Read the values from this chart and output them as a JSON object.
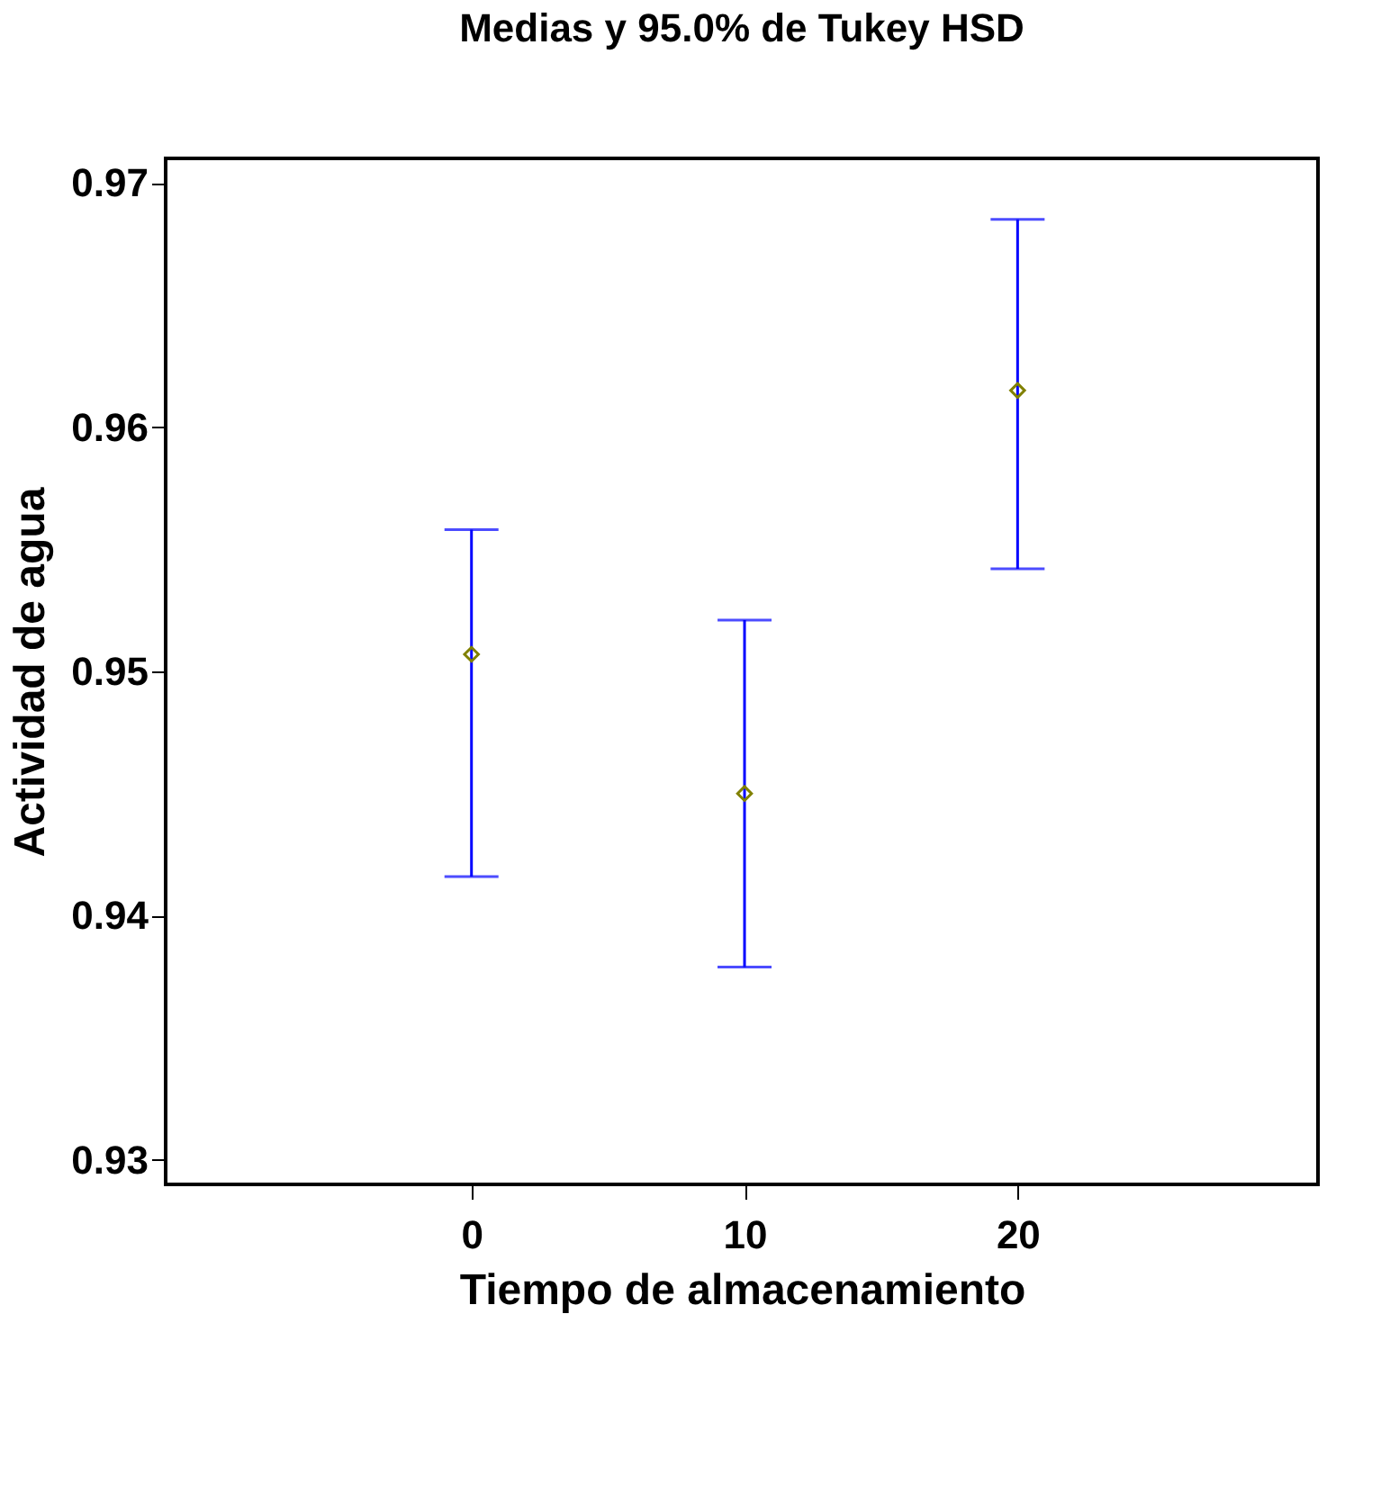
{
  "chart_data": {
    "type": "scatter",
    "title": "Medias y 95.0% de Tukey HSD",
    "xlabel": "Tiempo de almacenamiento",
    "ylabel": "Actividad de agua",
    "x": [
      0,
      10,
      20
    ],
    "series": [
      {
        "color": "#808000",
        "values": [
          0.9507,
          0.945,
          0.9615
        ],
        "errors": [
          [
            0.9416,
            0.9558
          ],
          [
            0.9379,
            0.9521
          ],
          [
            0.9542,
            0.9685
          ]
        ]
      }
    ],
    "xlim": [
      -11.2,
      31
    ],
    "xticks": [
      0,
      10,
      20
    ],
    "ylim": [
      0.929,
      0.971
    ],
    "yticks": [
      0.93,
      0.94,
      0.95,
      0.96,
      0.97
    ],
    "marker": "diamond",
    "grid": false,
    "legend": false
  }
}
